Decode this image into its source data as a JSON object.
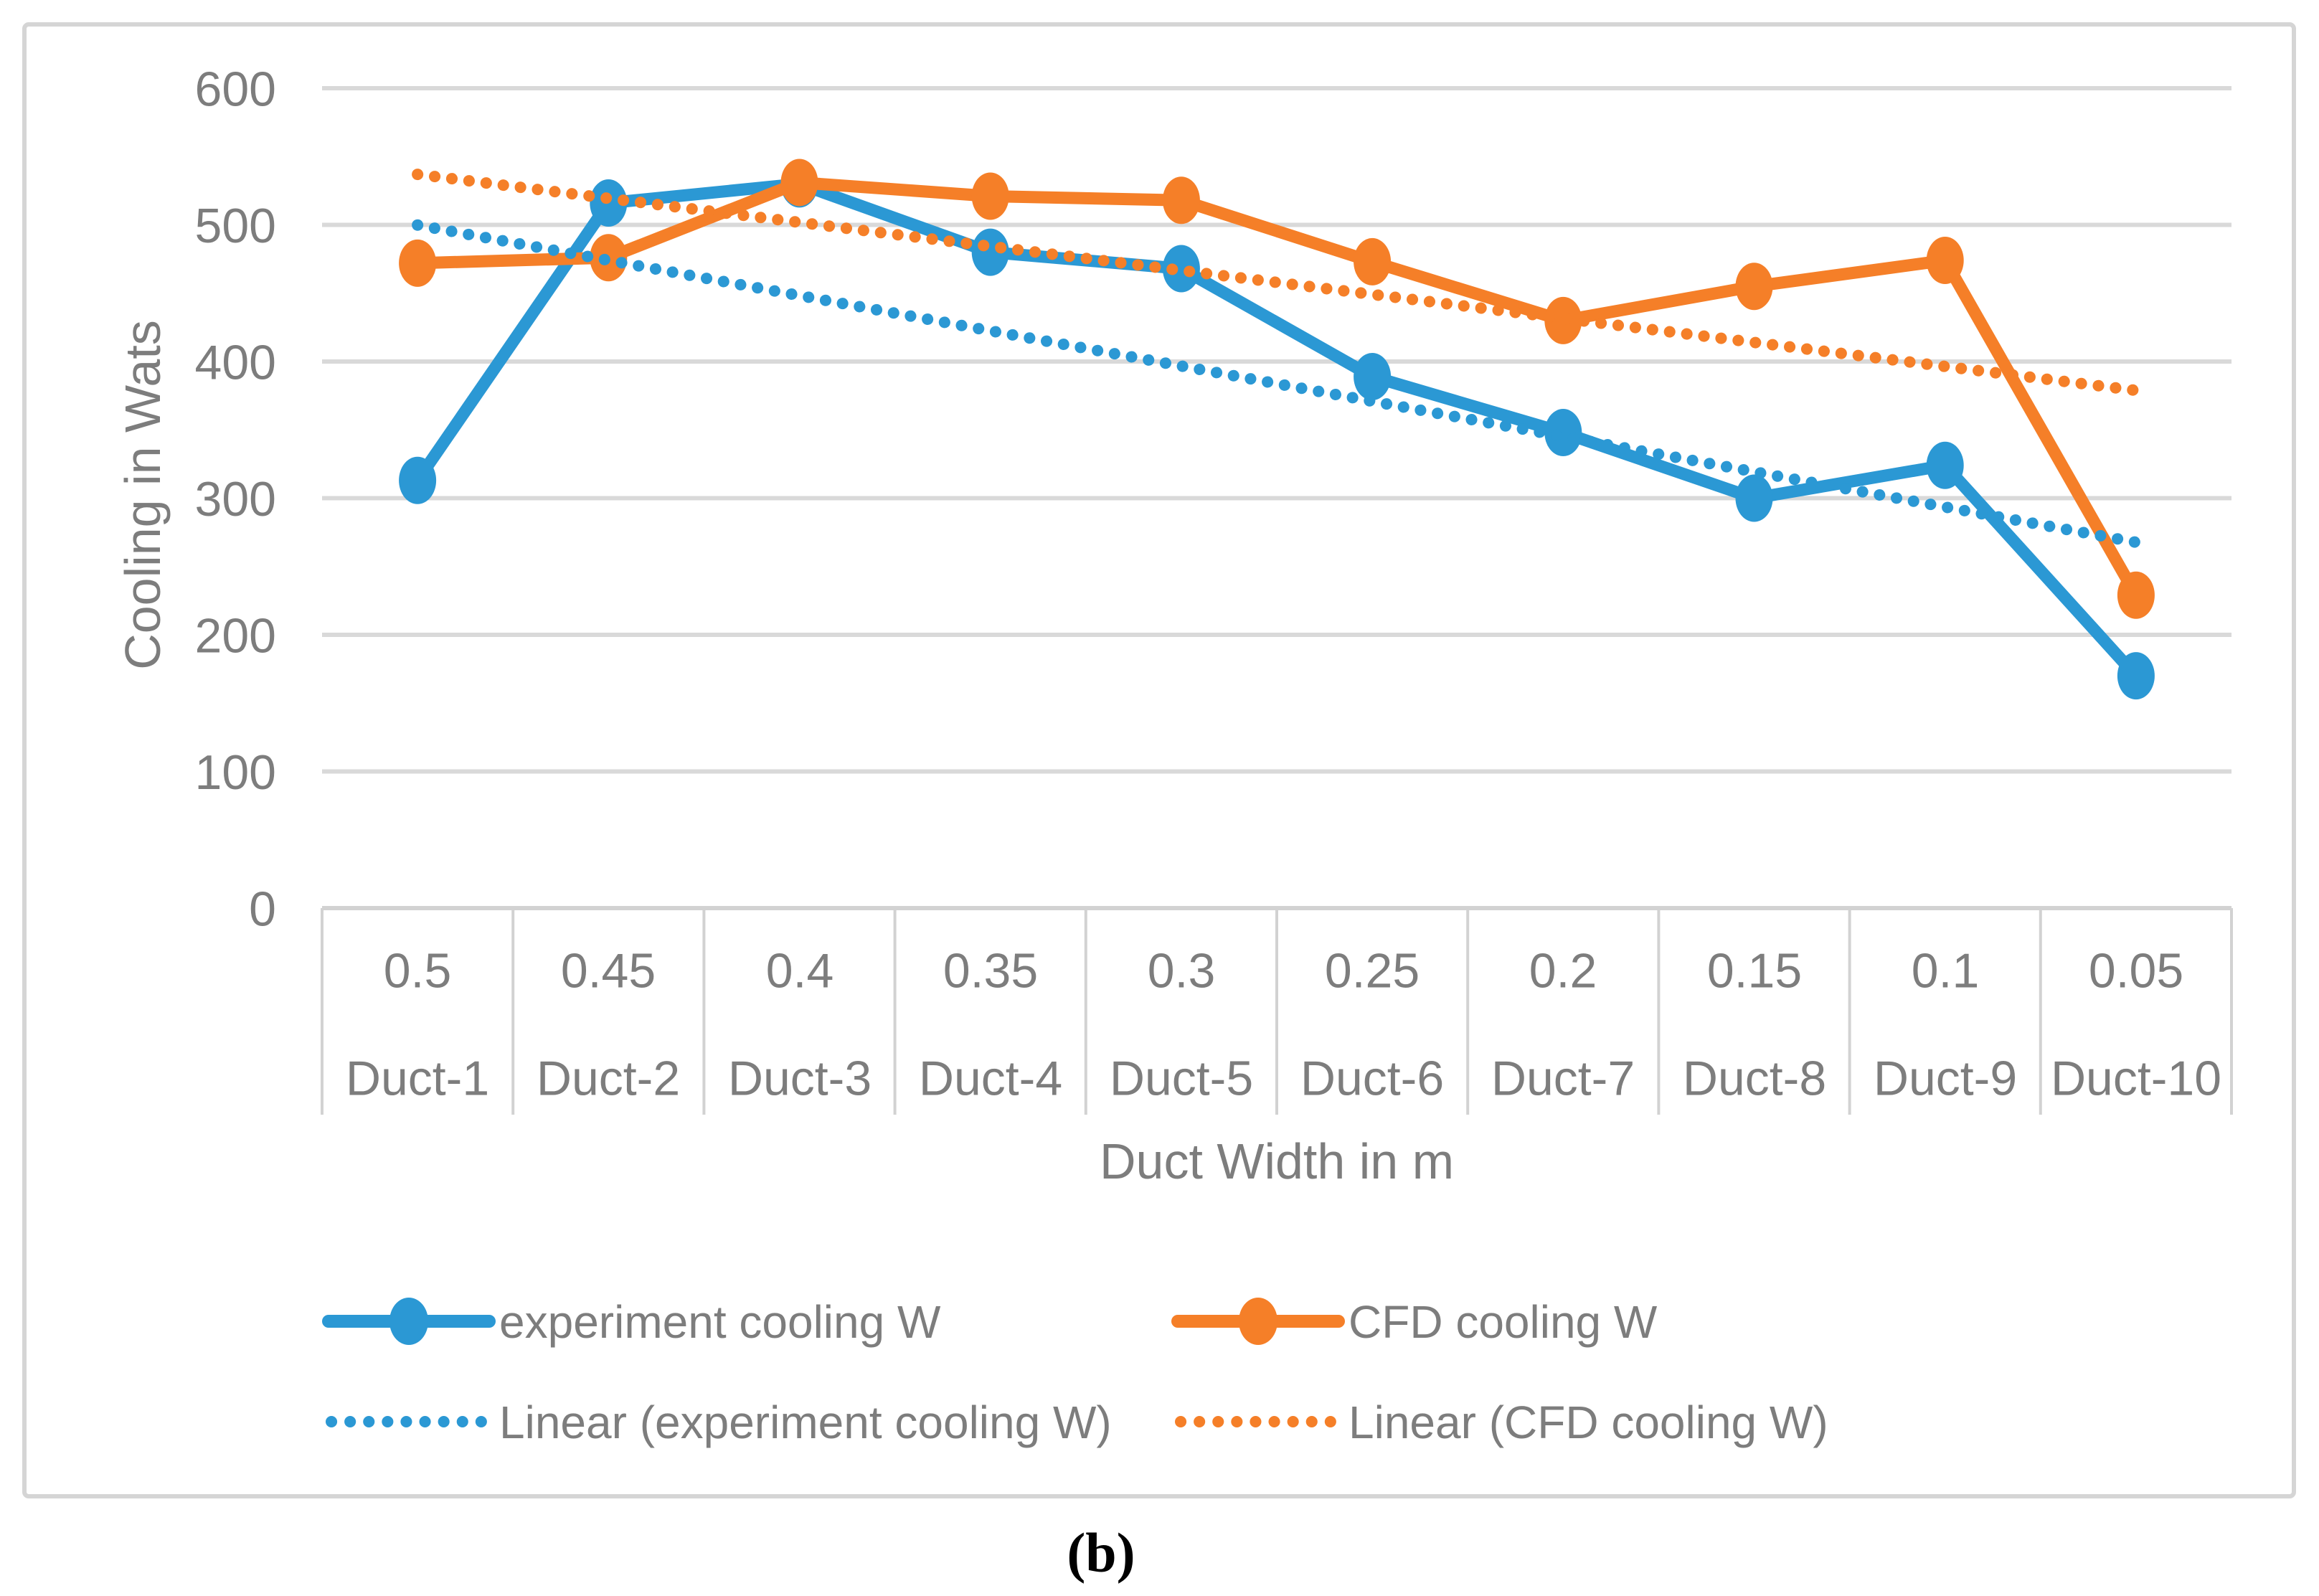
{
  "figure": {
    "caption": "(b)"
  },
  "chart_data": {
    "type": "line",
    "title": "",
    "xlabel": "Duct Width in m",
    "ylabel": "Cooling in Wats",
    "ylim": [
      0,
      600
    ],
    "yticks": [
      0,
      100,
      200,
      300,
      400,
      500,
      600
    ],
    "grid": "horizontal",
    "legend_position": "bottom",
    "categories_width": [
      "0.5",
      "0.45",
      "0.4",
      "0.35",
      "0.3",
      "0.25",
      "0.2",
      "0.15",
      "0.1",
      "0.05"
    ],
    "categories_duct": [
      "Duct-1",
      "Duct-2",
      "Duct-3",
      "Duct-4",
      "Duct-5",
      "Duct-6",
      "Duct-7",
      "Duct-8",
      "Duct-9",
      "Duct-10"
    ],
    "series": [
      {
        "name": "experiment cooling W",
        "color": "#2B98D4",
        "values": [
          313,
          516,
          530,
          480,
          468,
          389,
          348,
          300,
          324,
          170
        ],
        "trend": "linear",
        "trend_label": "Linear (experiment cooling W)"
      },
      {
        "name": "CFD cooling W",
        "color": "#F57F28",
        "values": [
          472,
          476,
          531,
          521,
          518,
          473,
          430,
          455,
          474,
          229
        ],
        "trend": "linear",
        "trend_label": "Linear (CFD cooling W)"
      }
    ],
    "colors": {
      "gridline": "#D9D9D9",
      "table_border": "#D2D2D2",
      "outer_border": "#D5D5D5",
      "axis_text": "#7d7d7d",
      "caption_text": "#000000"
    }
  }
}
